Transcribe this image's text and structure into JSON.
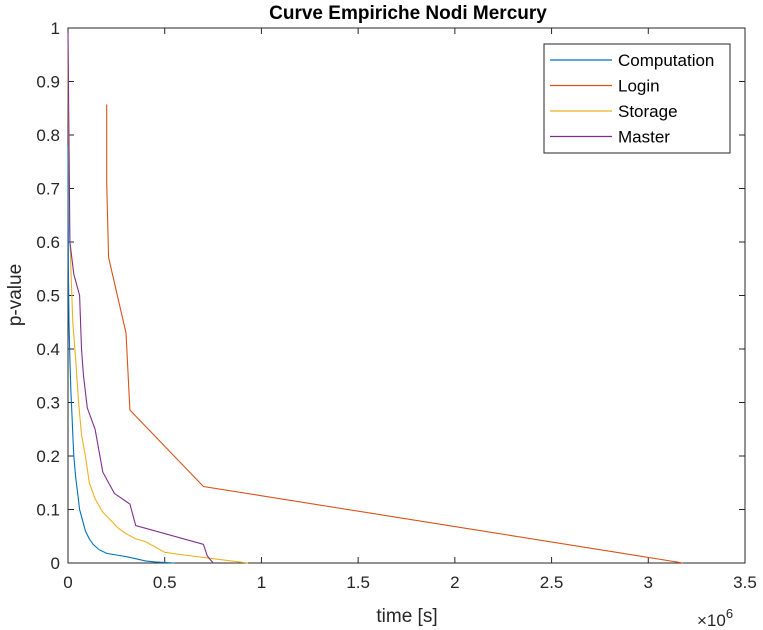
{
  "chart_data": {
    "type": "line",
    "title": "Curve Empiriche Nodi Mercury",
    "xlabel": "time [s]",
    "ylabel": "p-value",
    "x_exponent_label": "×10",
    "x_exponent": "6",
    "xlim": [
      0,
      3500000
    ],
    "ylim": [
      0,
      1
    ],
    "x_ticks": [
      0,
      500000,
      1000000,
      1500000,
      2000000,
      2500000,
      3000000,
      3500000
    ],
    "x_tick_labels": [
      "0",
      "0.5",
      "1",
      "1.5",
      "2",
      "2.5",
      "3",
      "3.5"
    ],
    "y_ticks": [
      0,
      0.1,
      0.2,
      0.3,
      0.4,
      0.5,
      0.6,
      0.7,
      0.8,
      0.9,
      1
    ],
    "y_tick_labels": [
      "0",
      "0.1",
      "0.2",
      "0.3",
      "0.4",
      "0.5",
      "0.6",
      "0.7",
      "0.8",
      "0.9",
      "1"
    ],
    "grid": false,
    "legend_position": "top-right",
    "series": [
      {
        "name": "Computation",
        "color": "#0072BD",
        "x": [
          0,
          2000,
          5000,
          10000,
          15000,
          20000,
          25000,
          30000,
          40000,
          50000,
          60000,
          75000,
          90000,
          110000,
          130000,
          160000,
          200000,
          250000,
          300000,
          350000,
          400000,
          450000,
          550000
        ],
        "y": [
          0.78,
          0.55,
          0.45,
          0.38,
          0.32,
          0.28,
          0.24,
          0.2,
          0.16,
          0.13,
          0.1,
          0.08,
          0.06,
          0.045,
          0.035,
          0.025,
          0.018,
          0.015,
          0.012,
          0.008,
          0.004,
          0.002,
          0
        ]
      },
      {
        "name": "Login",
        "color": "#D95319",
        "x": [
          200000,
          200000,
          210000,
          300000,
          320000,
          700000,
          3180000
        ],
        "y": [
          0.857,
          0.71,
          0.571,
          0.43,
          0.286,
          0.143,
          0
        ]
      },
      {
        "name": "Storage",
        "color": "#EDB120",
        "x": [
          0,
          3000,
          8000,
          15000,
          25000,
          40000,
          55000,
          70000,
          90000,
          110000,
          140000,
          180000,
          220000,
          260000,
          300000,
          350000,
          400000,
          500000,
          600000,
          750000,
          930000
        ],
        "y": [
          0.98,
          0.8,
          0.63,
          0.55,
          0.45,
          0.38,
          0.3,
          0.24,
          0.2,
          0.15,
          0.12,
          0.095,
          0.08,
          0.065,
          0.055,
          0.045,
          0.04,
          0.02,
          0.015,
          0.008,
          0
        ]
      },
      {
        "name": "Master",
        "color": "#7E2F8E",
        "x": [
          0,
          10000,
          30000,
          60000,
          70000,
          80000,
          100000,
          140000,
          180000,
          240000,
          320000,
          350000,
          700000,
          720000,
          750000
        ],
        "y": [
          0.99,
          0.6,
          0.54,
          0.5,
          0.4,
          0.35,
          0.29,
          0.25,
          0.17,
          0.13,
          0.11,
          0.07,
          0.035,
          0.013,
          0
        ]
      }
    ]
  }
}
